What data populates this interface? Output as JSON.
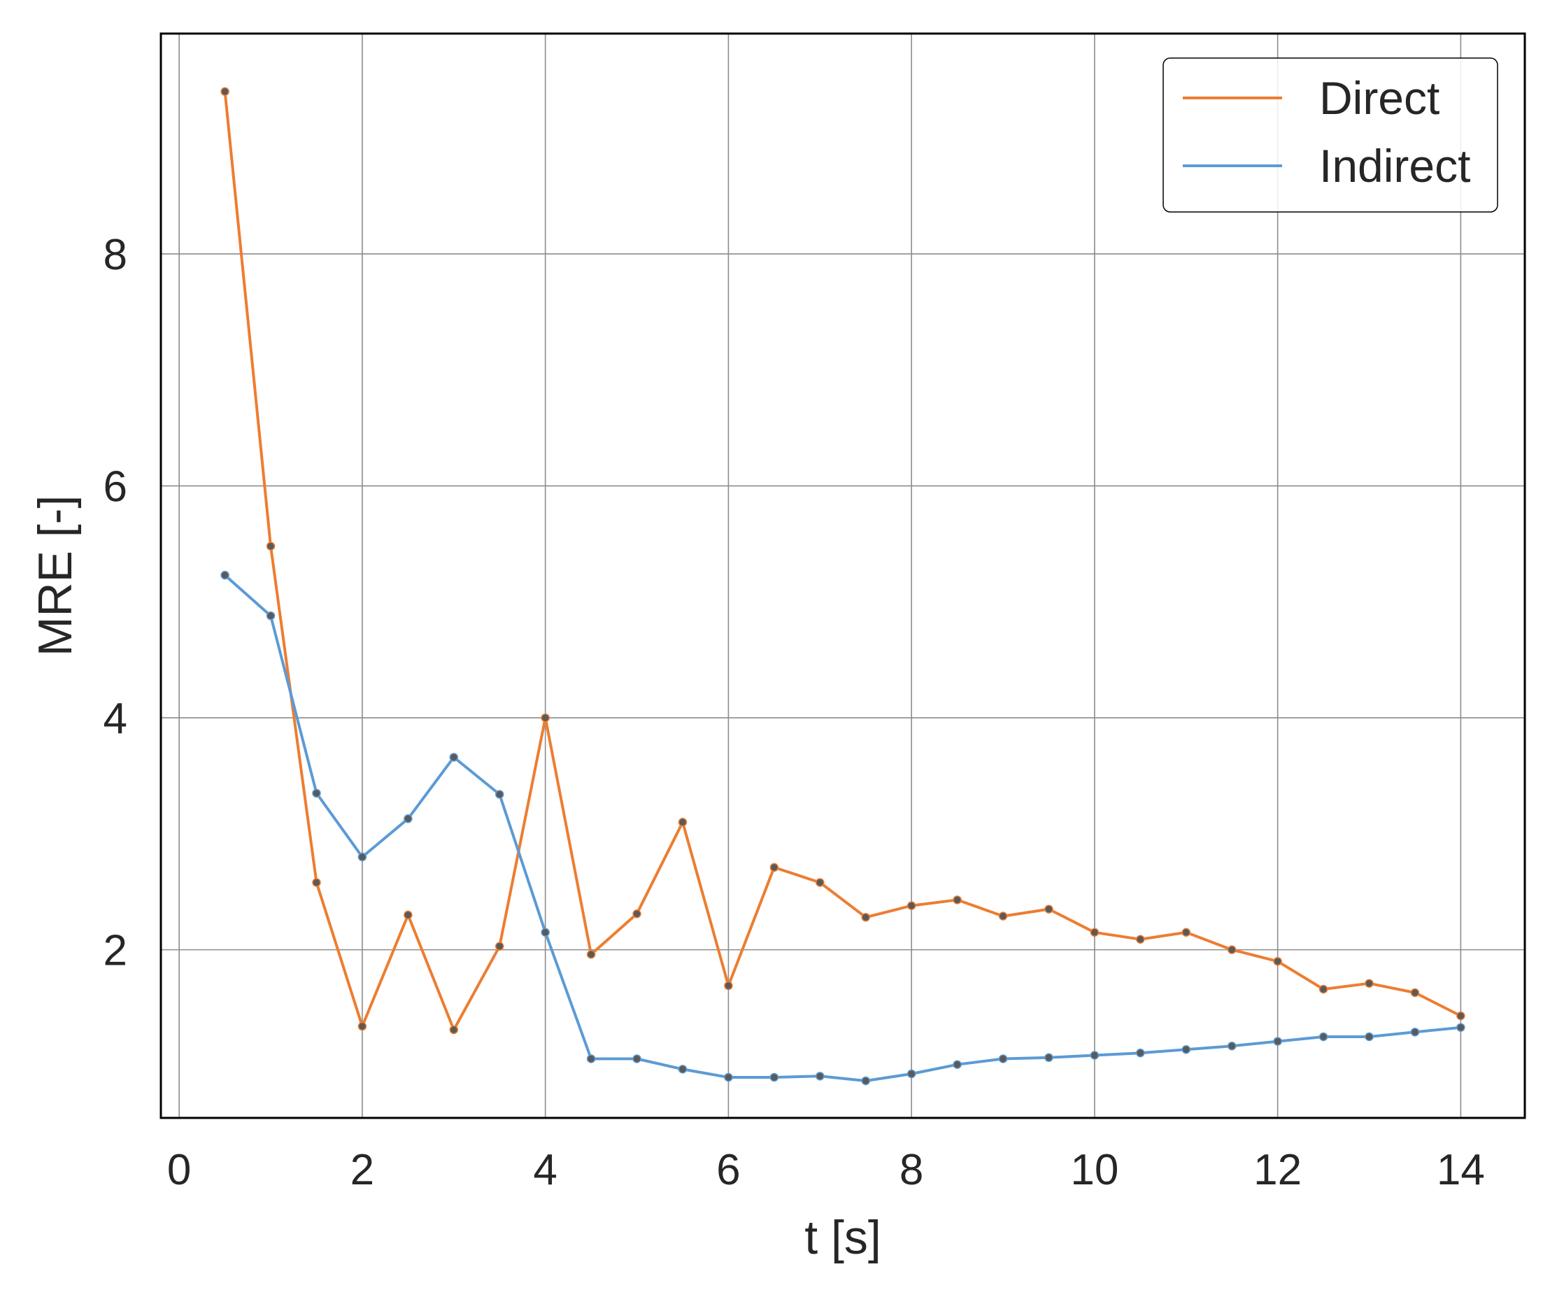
{
  "chart_data": {
    "type": "line",
    "title": "",
    "xlabel": "t [s]",
    "ylabel": "MRE [-]",
    "xlim": [
      -0.2,
      14.7
    ],
    "ylim": [
      0.55,
      9.9
    ],
    "xticks": [
      0,
      2,
      4,
      6,
      8,
      10,
      12,
      14
    ],
    "yticks": [
      2,
      4,
      6,
      8
    ],
    "grid": true,
    "legend_position": "top-right",
    "x": [
      0.5,
      1.0,
      1.5,
      2.0,
      2.5,
      3.0,
      3.5,
      4.0,
      4.5,
      5.0,
      5.5,
      6.0,
      6.5,
      7.0,
      7.5,
      8.0,
      8.5,
      9.0,
      9.5,
      10.0,
      10.5,
      11.0,
      11.5,
      12.0,
      12.5,
      13.0,
      13.5,
      14.0
    ],
    "series": [
      {
        "name": "Direct",
        "color": "#ed7d31",
        "values": [
          9.4,
          5.48,
          2.58,
          1.34,
          2.3,
          1.31,
          2.03,
          4.0,
          1.96,
          2.31,
          3.1,
          1.69,
          2.71,
          2.58,
          2.28,
          2.38,
          2.43,
          2.29,
          2.35,
          2.15,
          2.09,
          2.15,
          2.0,
          1.9,
          1.66,
          1.71,
          1.63,
          1.43
        ]
      },
      {
        "name": "Indirect",
        "color": "#5b9bd5",
        "values": [
          5.23,
          4.88,
          3.35,
          2.8,
          3.13,
          3.66,
          3.34,
          2.15,
          1.06,
          1.06,
          0.97,
          0.9,
          0.9,
          0.91,
          0.87,
          0.93,
          1.01,
          1.06,
          1.07,
          1.09,
          1.11,
          1.14,
          1.17,
          1.21,
          1.25,
          1.25,
          1.29,
          1.33
        ]
      }
    ]
  }
}
